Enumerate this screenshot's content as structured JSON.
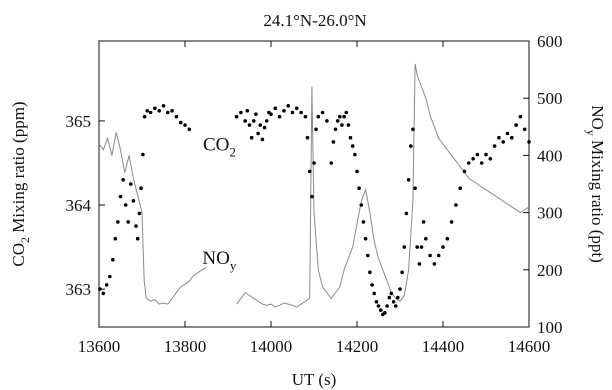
{
  "chart_data": {
    "type": "scatter",
    "title": "24.1°N-26.0°N",
    "xlabel": "UT (s)",
    "ylabel_left": {
      "main": "CO",
      "sub": "2",
      "rest": " Mixing ratio (ppm)"
    },
    "ylabel_right": {
      "main": "NO",
      "sub": "y",
      "rest": " Mixing ratio (ppt)"
    },
    "xlim": [
      13600,
      14600
    ],
    "ylim_left": [
      362.55,
      365.95
    ],
    "ylim_right": [
      100,
      600
    ],
    "xticks": [
      13600,
      13800,
      14000,
      14200,
      14400,
      14600
    ],
    "yticks_left": [
      363,
      364,
      365
    ],
    "yticks_right": [
      100,
      200,
      300,
      400,
      500,
      600
    ],
    "annotations": [
      {
        "main": "CO",
        "sub": "2",
        "x": 13880,
        "y_left": 364.65
      },
      {
        "main": "NO",
        "sub": "y",
        "x": 13880,
        "y_left": 363.3
      }
    ],
    "series": [
      {
        "label": "CO2",
        "axis": "left",
        "style": "dots",
        "color": "#000000",
        "points": [
          [
            13602,
            363.0
          ],
          [
            13610,
            362.95
          ],
          [
            13618,
            363.05
          ],
          [
            13625,
            363.15
          ],
          [
            13632,
            363.35
          ],
          [
            13638,
            363.6
          ],
          [
            13644,
            363.8
          ],
          [
            13650,
            364.1
          ],
          [
            13656,
            364.3
          ],
          [
            13662,
            364.0
          ],
          [
            13668,
            363.8
          ],
          [
            13674,
            364.25
          ],
          [
            13680,
            364.05
          ],
          [
            13686,
            363.75
          ],
          [
            13690,
            363.6
          ],
          [
            13694,
            363.9
          ],
          [
            13698,
            364.2
          ],
          [
            13702,
            364.6
          ],
          [
            13706,
            365.05
          ],
          [
            13712,
            365.12
          ],
          [
            13720,
            365.1
          ],
          [
            13730,
            365.15
          ],
          [
            13740,
            365.12
          ],
          [
            13750,
            365.18
          ],
          [
            13760,
            365.1
          ],
          [
            13770,
            365.12
          ],
          [
            13780,
            365.05
          ],
          [
            13790,
            364.98
          ],
          [
            13800,
            364.95
          ],
          [
            13810,
            364.9
          ],
          [
            13920,
            365.05
          ],
          [
            13930,
            365.1
          ],
          [
            13940,
            365.0
          ],
          [
            13945,
            365.12
          ],
          [
            13950,
            364.95
          ],
          [
            13955,
            364.8
          ],
          [
            13960,
            365.0
          ],
          [
            13965,
            365.08
          ],
          [
            13970,
            364.85
          ],
          [
            13975,
            364.95
          ],
          [
            13980,
            364.78
          ],
          [
            13985,
            364.92
          ],
          [
            13990,
            365.0
          ],
          [
            13995,
            365.1
          ],
          [
            14000,
            365.08
          ],
          [
            14010,
            365.15
          ],
          [
            14020,
            365.05
          ],
          [
            14030,
            365.12
          ],
          [
            14040,
            365.18
          ],
          [
            14050,
            365.1
          ],
          [
            14060,
            365.15
          ],
          [
            14070,
            365.1
          ],
          [
            14080,
            365.05
          ],
          [
            14085,
            364.8
          ],
          [
            14090,
            364.4
          ],
          [
            14095,
            364.1
          ],
          [
            14100,
            364.5
          ],
          [
            14105,
            364.9
          ],
          [
            14110,
            365.05
          ],
          [
            14120,
            365.1
          ],
          [
            14130,
            365.0
          ],
          [
            14140,
            364.5
          ],
          [
            14145,
            364.75
          ],
          [
            14150,
            364.9
          ],
          [
            14155,
            365.0
          ],
          [
            14160,
            365.05
          ],
          [
            14165,
            364.95
          ],
          [
            14170,
            365.05
          ],
          [
            14175,
            365.1
          ],
          [
            14180,
            364.95
          ],
          [
            14185,
            364.8
          ],
          [
            14190,
            364.7
          ],
          [
            14195,
            364.6
          ],
          [
            14200,
            364.4
          ],
          [
            14205,
            364.2
          ],
          [
            14210,
            364.0
          ],
          [
            14215,
            363.8
          ],
          [
            14220,
            363.6
          ],
          [
            14225,
            363.4
          ],
          [
            14230,
            363.2
          ],
          [
            14235,
            363.05
          ],
          [
            14240,
            362.95
          ],
          [
            14245,
            362.85
          ],
          [
            14250,
            362.8
          ],
          [
            14255,
            362.75
          ],
          [
            14260,
            362.7
          ],
          [
            14265,
            362.72
          ],
          [
            14270,
            362.8
          ],
          [
            14275,
            362.9
          ],
          [
            14280,
            362.95
          ],
          [
            14285,
            362.85
          ],
          [
            14290,
            362.8
          ],
          [
            14295,
            362.9
          ],
          [
            14300,
            363.0
          ],
          [
            14305,
            363.2
          ],
          [
            14310,
            363.5
          ],
          [
            14315,
            363.9
          ],
          [
            14320,
            364.3
          ],
          [
            14325,
            364.7
          ],
          [
            14330,
            364.9
          ],
          [
            14335,
            364.2
          ],
          [
            14340,
            363.5
          ],
          [
            14345,
            363.3
          ],
          [
            14350,
            363.5
          ],
          [
            14355,
            363.8
          ],
          [
            14360,
            363.6
          ],
          [
            14370,
            363.4
          ],
          [
            14380,
            363.3
          ],
          [
            14390,
            363.4
          ],
          [
            14400,
            363.5
          ],
          [
            14410,
            363.6
          ],
          [
            14420,
            363.8
          ],
          [
            14430,
            364.0
          ],
          [
            14440,
            364.2
          ],
          [
            14450,
            364.4
          ],
          [
            14460,
            364.5
          ],
          [
            14470,
            364.55
          ],
          [
            14480,
            364.6
          ],
          [
            14490,
            364.5
          ],
          [
            14500,
            364.6
          ],
          [
            14510,
            364.55
          ],
          [
            14520,
            364.7
          ],
          [
            14530,
            364.8
          ],
          [
            14540,
            364.75
          ],
          [
            14550,
            364.85
          ],
          [
            14560,
            364.8
          ],
          [
            14570,
            364.95
          ],
          [
            14580,
            365.05
          ],
          [
            14590,
            364.9
          ],
          [
            14600,
            364.75
          ]
        ]
      },
      {
        "label": "NOy",
        "axis": "right",
        "style": "line",
        "color": "#8a8a8a",
        "segments": [
          [
            [
              13600,
              420
            ],
            [
              13610,
              410
            ],
            [
              13620,
              430
            ],
            [
              13630,
              400
            ],
            [
              13640,
              440
            ],
            [
              13650,
              410
            ],
            [
              13660,
              370
            ],
            [
              13670,
              400
            ],
            [
              13680,
              360
            ],
            [
              13690,
              330
            ],
            [
              13700,
              300
            ],
            [
              13705,
              180
            ],
            [
              13710,
              150
            ],
            [
              13720,
              145
            ],
            [
              13730,
              148
            ],
            [
              13740,
              140
            ],
            [
              13750,
              142
            ],
            [
              13760,
              140
            ],
            [
              13770,
              150
            ],
            [
              13780,
              160
            ],
            [
              13790,
              170
            ],
            [
              13800,
              175
            ],
            [
              13810,
              180
            ],
            [
              13820,
              190
            ],
            [
              13830,
              195
            ],
            [
              13840,
              200
            ],
            [
              13850,
              205
            ]
          ],
          [
            [
              13920,
              140
            ],
            [
              13930,
              150
            ],
            [
              13940,
              160
            ],
            [
              13950,
              155
            ],
            [
              13960,
              150
            ],
            [
              13970,
              145
            ],
            [
              13980,
              140
            ],
            [
              13990,
              138
            ],
            [
              14000,
              140
            ],
            [
              14010,
              135
            ],
            [
              14020,
              138
            ],
            [
              14030,
              142
            ],
            [
              14040,
              140
            ],
            [
              14050,
              138
            ],
            [
              14060,
              135
            ],
            [
              14070,
              140
            ],
            [
              14080,
              145
            ],
            [
              14090,
              150
            ],
            [
              14095,
              520
            ],
            [
              14100,
              300
            ],
            [
              14110,
              200
            ],
            [
              14120,
              170
            ],
            [
              14130,
              160
            ],
            [
              14140,
              150
            ],
            [
              14150,
              160
            ],
            [
              14160,
              170
            ],
            [
              14170,
              200
            ],
            [
              14180,
              220
            ],
            [
              14190,
              240
            ],
            [
              14200,
              280
            ],
            [
              14210,
              320
            ],
            [
              14220,
              340
            ],
            [
              14230,
              300
            ],
            [
              14240,
              250
            ],
            [
              14250,
              220
            ],
            [
              14260,
              200
            ],
            [
              14270,
              180
            ],
            [
              14280,
              160
            ],
            [
              14290,
              150
            ],
            [
              14300,
              145
            ],
            [
              14310,
              155
            ],
            [
              14320,
              200
            ],
            [
              14330,
              320
            ],
            [
              14335,
              560
            ],
            [
              14340,
              540
            ],
            [
              14350,
              520
            ],
            [
              14360,
              500
            ],
            [
              14370,
              470
            ],
            [
              14380,
              450
            ],
            [
              14390,
              430
            ],
            [
              14400,
              420
            ],
            [
              14410,
              410
            ],
            [
              14420,
              400
            ],
            [
              14430,
              390
            ],
            [
              14440,
              380
            ],
            [
              14450,
              370
            ],
            [
              14460,
              360
            ],
            [
              14470,
              355
            ],
            [
              14480,
              350
            ],
            [
              14490,
              345
            ],
            [
              14500,
              340
            ],
            [
              14510,
              335
            ],
            [
              14520,
              330
            ],
            [
              14530,
              325
            ],
            [
              14540,
              320
            ],
            [
              14550,
              315
            ],
            [
              14560,
              310
            ],
            [
              14570,
              305
            ],
            [
              14580,
              300
            ],
            [
              14590,
              305
            ],
            [
              14600,
              310
            ]
          ]
        ]
      }
    ]
  }
}
